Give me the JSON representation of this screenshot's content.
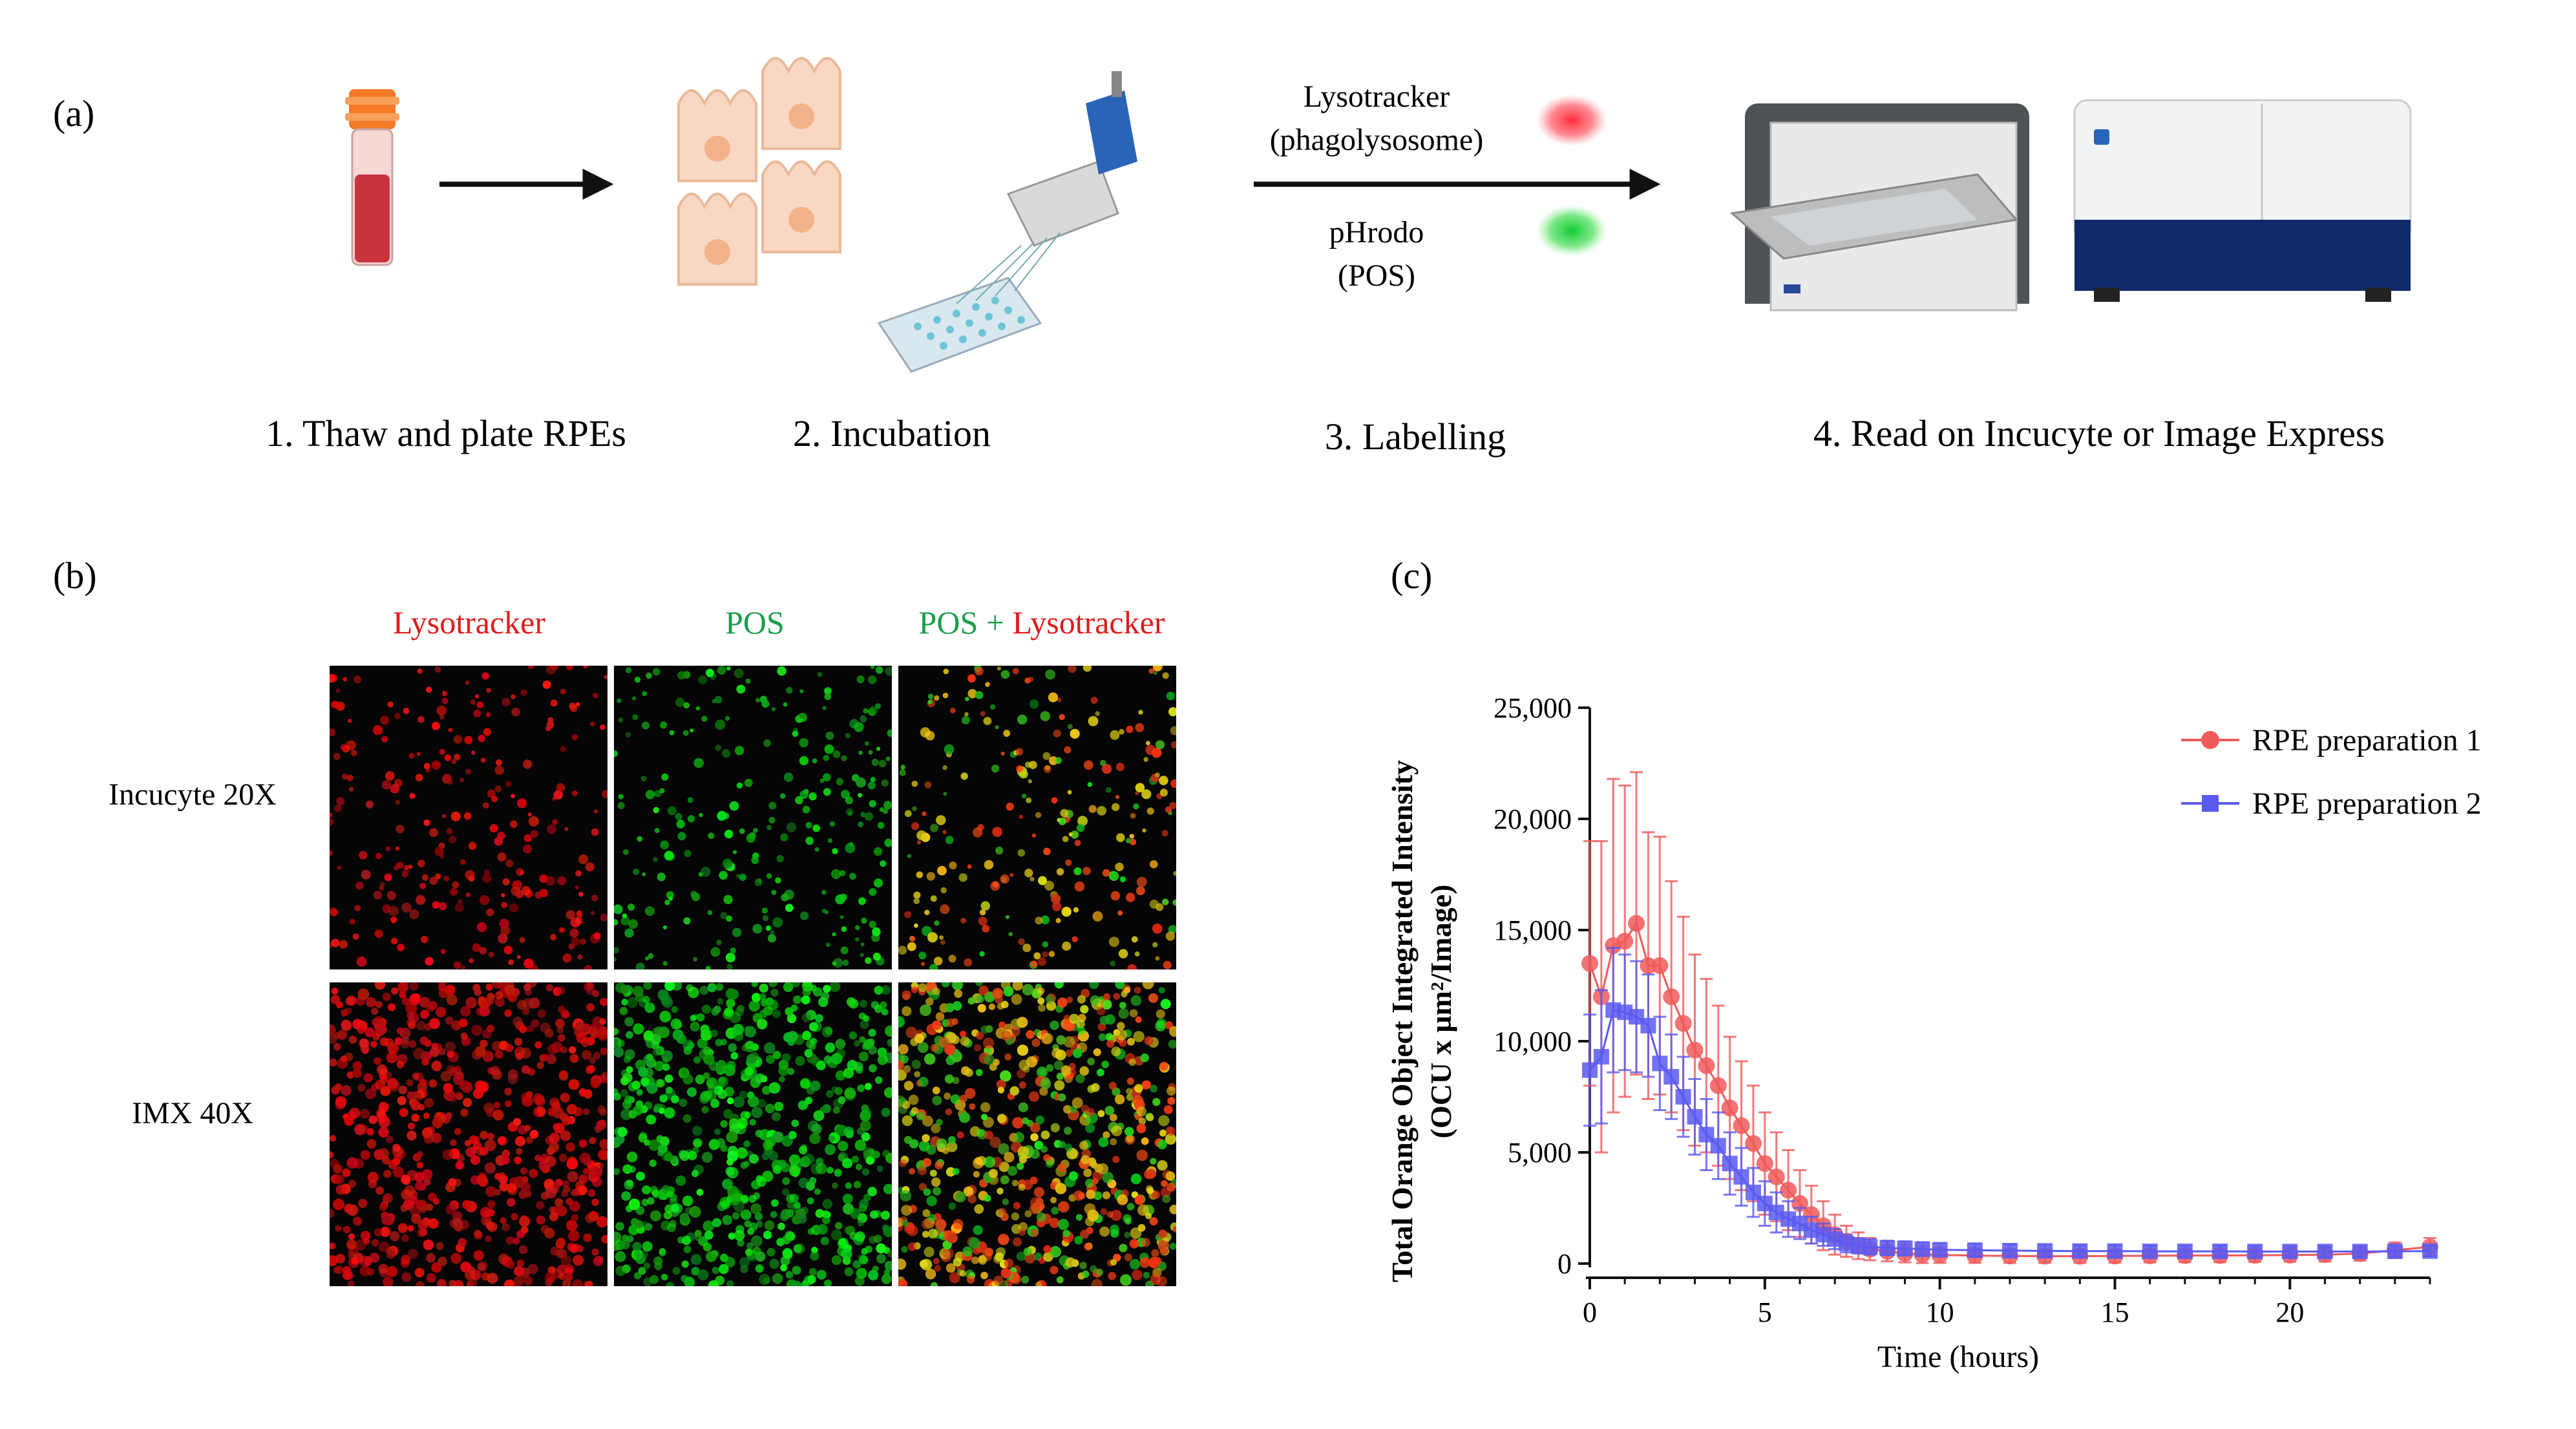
{
  "panel_a": {
    "label": "(a)",
    "steps": [
      "1. Thaw and plate RPEs",
      "2. Incubation",
      "3. Labelling",
      "4. Read on Incucyte or Image Express"
    ],
    "labels": {
      "lysotracker": "Lysotracker",
      "phagolysosome": "(phagolysosome)",
      "phrodo": "pHrodo",
      "pos": "(POS)"
    }
  },
  "panel_b": {
    "label": "(b)",
    "columns": [
      "Lysotracker",
      "POS",
      "POS + Lysotracker"
    ],
    "rows": [
      "Incucyte 20X",
      "IMX 40X"
    ],
    "colors": {
      "red": "#e01b1b",
      "green": "#1a9e4a"
    }
  },
  "panel_c": {
    "label": "(c)"
  },
  "chart_data": {
    "type": "scatter",
    "xlabel": "Time (hours)",
    "ylabel_line1": "Total Orange Object Integrated Intensity",
    "ylabel_line2": "(OCU x µm²/Image)",
    "xlim": [
      0,
      24
    ],
    "ylim": [
      0,
      25000
    ],
    "xticks": [
      "0",
      "5",
      "10",
      "15",
      "20"
    ],
    "yticks": [
      "0",
      "5,000",
      "10,000",
      "15,000",
      "20,000",
      "25,000"
    ],
    "legend_position": "top-right",
    "series": [
      {
        "name": "RPE preparation 1",
        "color": "#f05a5a",
        "marker": "circle",
        "x": [
          0,
          0.33,
          0.67,
          1,
          1.33,
          1.67,
          2,
          2.33,
          2.67,
          3,
          3.33,
          3.67,
          4,
          4.33,
          4.67,
          5,
          5.33,
          5.67,
          6,
          6.33,
          6.67,
          7,
          7.33,
          7.67,
          8,
          8.5,
          9,
          9.5,
          10,
          11,
          12,
          13,
          14,
          15,
          16,
          17,
          18,
          19,
          20,
          21,
          22,
          23,
          24
        ],
        "y": [
          13500,
          12000,
          14300,
          14500,
          15300,
          13400,
          13400,
          12000,
          10800,
          9600,
          8900,
          8000,
          7000,
          6200,
          5400,
          4500,
          3900,
          3300,
          2700,
          2200,
          1700,
          1300,
          1000,
          800,
          650,
          550,
          450,
          400,
          380,
          360,
          340,
          330,
          330,
          340,
          350,
          360,
          360,
          370,
          380,
          400,
          450,
          600,
          750
        ],
        "err": [
          5500,
          7000,
          7500,
          7000,
          6800,
          6000,
          5800,
          5200,
          4800,
          4300,
          3900,
          3600,
          3200,
          2900,
          2600,
          2300,
          2000,
          1800,
          1500,
          1300,
          1100,
          900,
          700,
          600,
          500,
          450,
          400,
          380,
          350,
          330,
          310,
          300,
          300,
          300,
          300,
          300,
          300,
          300,
          300,
          310,
          320,
          350,
          400
        ]
      },
      {
        "name": "RPE preparation 2",
        "color": "#5a5af0",
        "marker": "square",
        "x": [
          0,
          0.33,
          0.67,
          1,
          1.33,
          1.67,
          2,
          2.33,
          2.67,
          3,
          3.33,
          3.67,
          4,
          4.33,
          4.67,
          5,
          5.33,
          5.67,
          6,
          6.33,
          6.67,
          7,
          7.33,
          7.67,
          8,
          8.5,
          9,
          9.5,
          10,
          11,
          12,
          13,
          14,
          15,
          16,
          17,
          18,
          19,
          20,
          21,
          22,
          23,
          24
        ],
        "y": [
          8700,
          9300,
          11400,
          11300,
          11100,
          10700,
          9000,
          8400,
          7500,
          6600,
          5800,
          5300,
          4500,
          3900,
          3200,
          2700,
          2300,
          2000,
          1800,
          1500,
          1300,
          1100,
          900,
          800,
          750,
          700,
          680,
          650,
          620,
          600,
          580,
          570,
          560,
          560,
          550,
          550,
          550,
          540,
          540,
          540,
          540,
          550,
          560
        ],
        "err": [
          2500,
          3000,
          2800,
          2600,
          2500,
          2300,
          2100,
          1900,
          1800,
          1700,
          1600,
          1500,
          1400,
          1300,
          1100,
          1000,
          900,
          800,
          700,
          600,
          500,
          450,
          400,
          350,
          350,
          330,
          320,
          310,
          300,
          290,
          280,
          270,
          260,
          260,
          250,
          250,
          250,
          250,
          240,
          240,
          240,
          240,
          240
        ]
      }
    ]
  }
}
